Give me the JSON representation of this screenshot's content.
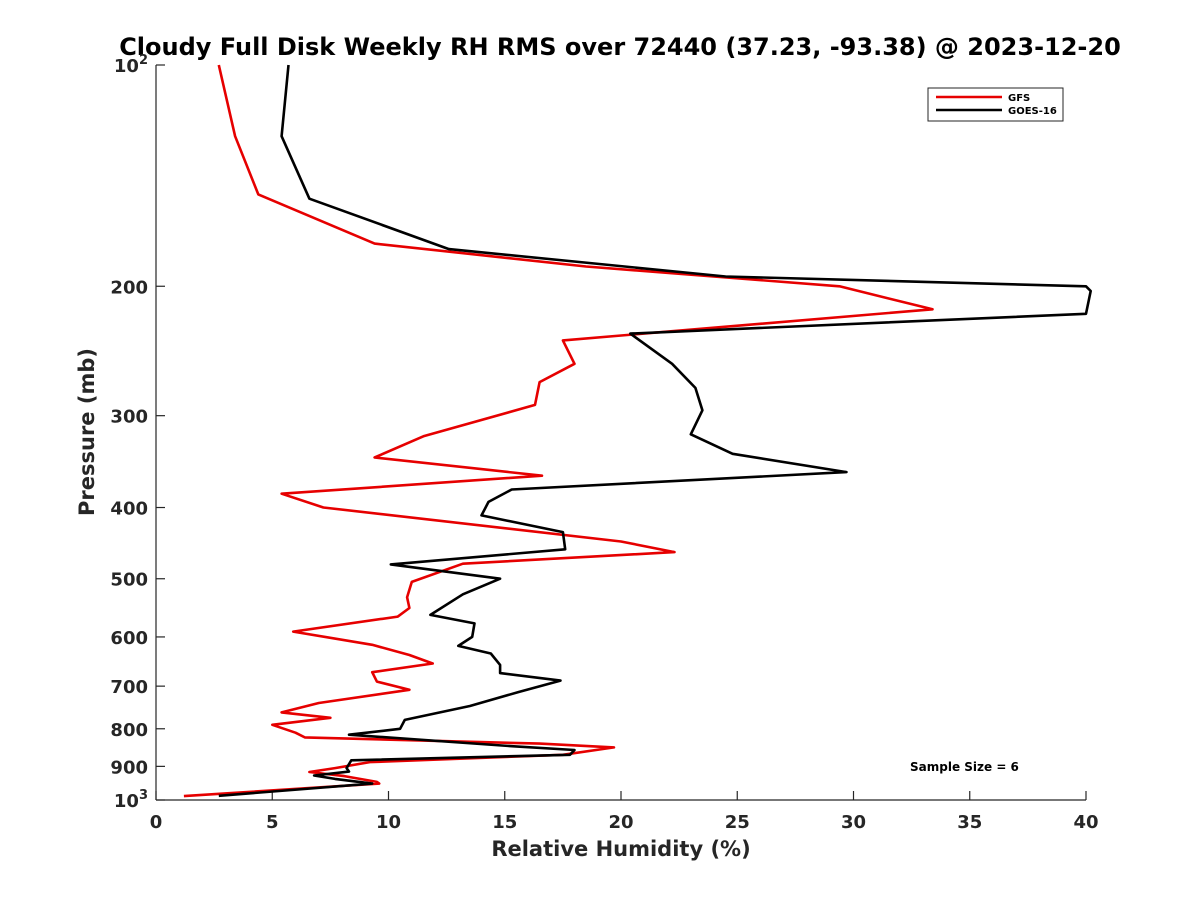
{
  "chart_data": {
    "type": "line",
    "title": "Cloudy Full Disk Weekly RH RMS over 72440 (37.23, -93.38) @ 2023-12-20",
    "xlabel": "Relative Humidity (%)",
    "ylabel": "Pressure (mb)",
    "xlim": [
      0,
      40
    ],
    "ylim": [
      100,
      1000
    ],
    "y_scale": "log",
    "y_reversed": true,
    "grid": false,
    "legend_position": "top-right",
    "x_ticks": [
      {
        "value": 0,
        "label": "0"
      },
      {
        "value": 5,
        "label": "5"
      },
      {
        "value": 10,
        "label": "10"
      },
      {
        "value": 15,
        "label": "15"
      },
      {
        "value": 20,
        "label": "20"
      },
      {
        "value": 25,
        "label": "25"
      },
      {
        "value": 30,
        "label": "30"
      },
      {
        "value": 35,
        "label": "35"
      },
      {
        "value": 40,
        "label": "40"
      }
    ],
    "y_ticks": [
      {
        "value": 100,
        "label": "10",
        "sup": "2"
      },
      {
        "value": 200,
        "label": "200",
        "sup": ""
      },
      {
        "value": 300,
        "label": "300",
        "sup": ""
      },
      {
        "value": 400,
        "label": "400",
        "sup": ""
      },
      {
        "value": 500,
        "label": "500",
        "sup": ""
      },
      {
        "value": 600,
        "label": "600",
        "sup": ""
      },
      {
        "value": 700,
        "label": "700",
        "sup": ""
      },
      {
        "value": 800,
        "label": "800",
        "sup": ""
      },
      {
        "value": 900,
        "label": "900",
        "sup": ""
      },
      {
        "value": 1000,
        "label": "10",
        "sup": "3"
      }
    ],
    "annotation": "Sample Size = 6",
    "series": [
      {
        "name": "GFS",
        "color": "#e60000",
        "points": [
          [
            2.7,
            100
          ],
          [
            3.4,
            125
          ],
          [
            4.4,
            150
          ],
          [
            9.4,
            175
          ],
          [
            18.5,
            188
          ],
          [
            29.4,
            200
          ],
          [
            33.4,
            215
          ],
          [
            17.5,
            237
          ],
          [
            18.0,
            255
          ],
          [
            16.5,
            270
          ],
          [
            16.3,
            290
          ],
          [
            11.5,
            320
          ],
          [
            9.4,
            342
          ],
          [
            16.6,
            362
          ],
          [
            5.4,
            383
          ],
          [
            7.2,
            400
          ],
          [
            20.0,
            445
          ],
          [
            22.3,
            460
          ],
          [
            13.2,
            477
          ],
          [
            11.0,
            505
          ],
          [
            10.8,
            530
          ],
          [
            10.9,
            548
          ],
          [
            10.4,
            563
          ],
          [
            5.9,
            590
          ],
          [
            9.3,
            615
          ],
          [
            10.9,
            635
          ],
          [
            11.9,
            652
          ],
          [
            9.3,
            670
          ],
          [
            9.5,
            690
          ],
          [
            10.9,
            708
          ],
          [
            7.0,
            738
          ],
          [
            5.4,
            760
          ],
          [
            7.5,
            773
          ],
          [
            5.0,
            790
          ],
          [
            6.0,
            810
          ],
          [
            6.4,
            822
          ],
          [
            16.5,
            838
          ],
          [
            19.7,
            848
          ],
          [
            17.5,
            868
          ],
          [
            9.2,
            888
          ],
          [
            7.7,
            905
          ],
          [
            6.6,
            916
          ],
          [
            8.1,
            928
          ],
          [
            9.5,
            945
          ],
          [
            9.6,
            950
          ],
          [
            1.2,
            988
          ]
        ]
      },
      {
        "name": "GOES-16",
        "color": "#000000",
        "points": [
          [
            5.7,
            100
          ],
          [
            5.4,
            125
          ],
          [
            6.6,
            152
          ],
          [
            12.6,
            178
          ],
          [
            24.5,
            194
          ],
          [
            40.0,
            200
          ],
          [
            40.2,
            203
          ],
          [
            40.0,
            218
          ],
          [
            20.4,
            232
          ],
          [
            22.2,
            255
          ],
          [
            23.2,
            275
          ],
          [
            23.5,
            295
          ],
          [
            23.0,
            318
          ],
          [
            24.8,
            338
          ],
          [
            29.7,
            358
          ],
          [
            15.3,
            378
          ],
          [
            14.3,
            393
          ],
          [
            14.0,
            410
          ],
          [
            17.5,
            432
          ],
          [
            17.6,
            456
          ],
          [
            10.1,
            478
          ],
          [
            14.8,
            500
          ],
          [
            13.2,
            525
          ],
          [
            11.8,
            560
          ],
          [
            13.7,
            575
          ],
          [
            13.6,
            600
          ],
          [
            13.0,
            617
          ],
          [
            14.4,
            632
          ],
          [
            14.8,
            655
          ],
          [
            14.8,
            672
          ],
          [
            17.4,
            688
          ],
          [
            15.6,
            713
          ],
          [
            13.5,
            745
          ],
          [
            10.7,
            778
          ],
          [
            10.5,
            800
          ],
          [
            8.3,
            815
          ],
          [
            15.3,
            845
          ],
          [
            18.0,
            855
          ],
          [
            17.8,
            868
          ],
          [
            8.4,
            883
          ],
          [
            8.2,
            905
          ],
          [
            8.3,
            915
          ],
          [
            6.8,
            926
          ],
          [
            7.7,
            936
          ],
          [
            9.3,
            950
          ],
          [
            2.7,
            987
          ]
        ]
      }
    ]
  }
}
